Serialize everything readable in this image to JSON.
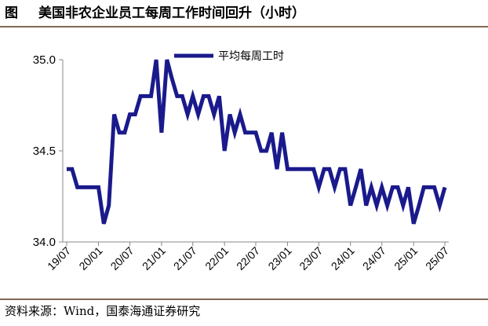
{
  "header": {
    "label": "图",
    "title": "美国非农企业员工每周工作时间回升（小时）"
  },
  "footer": {
    "source": "资料来源：Wind，国泰海通证券研究"
  },
  "chart_data": {
    "type": "line",
    "title": "美国非农企业员工每周工作时间回升（小时）",
    "ylim": [
      34.0,
      35.0
    ],
    "yticks": [
      "34.0",
      "34.5",
      "35.0"
    ],
    "xticks": [
      "19/07",
      "20/01",
      "20/07",
      "21/01",
      "21/07",
      "22/01",
      "22/07",
      "23/01",
      "23/07",
      "24/01",
      "24/07",
      "25/01",
      "25/07"
    ],
    "series_color": "#1a1a8c",
    "legend_position": "top",
    "series": [
      {
        "name": "平均每周工时",
        "x": [
          "2019-07",
          "2019-08",
          "2019-09",
          "2019-10",
          "2019-11",
          "2019-12",
          "2020-01",
          "2020-02",
          "2020-03",
          "2020-04",
          "2020-05",
          "2020-06",
          "2020-07",
          "2020-08",
          "2020-09",
          "2020-10",
          "2020-11",
          "2020-12",
          "2021-01",
          "2021-02",
          "2021-03",
          "2021-04",
          "2021-05",
          "2021-06",
          "2021-07",
          "2021-08",
          "2021-09",
          "2021-10",
          "2021-11",
          "2021-12",
          "2022-01",
          "2022-02",
          "2022-03",
          "2022-04",
          "2022-05",
          "2022-06",
          "2022-07",
          "2022-08",
          "2022-09",
          "2022-10",
          "2022-11",
          "2022-12",
          "2023-01",
          "2023-02",
          "2023-03",
          "2023-04",
          "2023-05",
          "2023-06",
          "2023-07",
          "2023-08",
          "2023-09",
          "2023-10",
          "2023-11",
          "2023-12",
          "2024-01",
          "2024-02",
          "2024-03",
          "2024-04",
          "2024-05",
          "2024-06",
          "2024-07",
          "2024-08",
          "2024-09",
          "2024-10",
          "2024-11",
          "2024-12",
          "2025-01",
          "2025-02",
          "2025-03",
          "2025-04",
          "2025-05",
          "2025-06",
          "2025-07"
        ],
        "values": [
          34.4,
          34.4,
          34.3,
          34.3,
          34.3,
          34.3,
          34.3,
          34.1,
          34.2,
          34.7,
          34.6,
          34.6,
          34.7,
          34.7,
          34.8,
          34.8,
          34.8,
          35.0,
          34.6,
          35.0,
          34.9,
          34.8,
          34.8,
          34.7,
          34.8,
          34.7,
          34.8,
          34.8,
          34.7,
          34.8,
          34.5,
          34.7,
          34.6,
          34.7,
          34.6,
          34.6,
          34.6,
          34.5,
          34.5,
          34.6,
          34.4,
          34.6,
          34.4,
          34.4,
          34.4,
          34.4,
          34.4,
          34.4,
          34.3,
          34.4,
          34.4,
          34.3,
          34.4,
          34.4,
          34.2,
          34.3,
          34.4,
          34.2,
          34.3,
          34.2,
          34.3,
          34.2,
          34.3,
          34.3,
          34.2,
          34.3,
          34.1,
          34.2,
          34.3,
          34.3,
          34.3,
          34.2,
          34.3
        ]
      }
    ]
  }
}
